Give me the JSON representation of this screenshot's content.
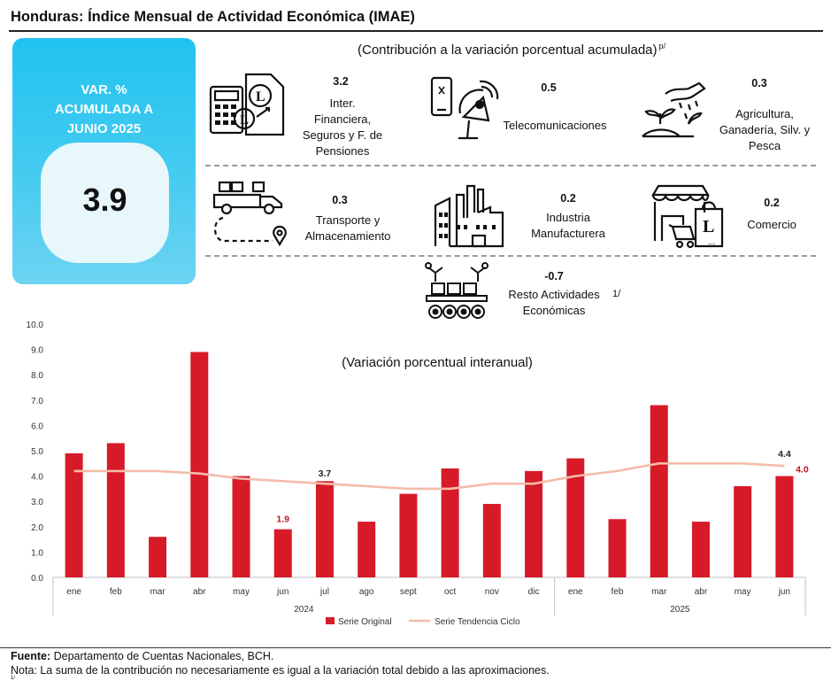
{
  "title": "Honduras: Índice Mensual de Actividad Económica (IMAE)",
  "contrib_subtitle": "(Contribución a la variación porcentual acumulada)",
  "contrib_subtitle_sup": "p/",
  "summary": {
    "label": "VAR. %\nACUMULADA A\nJUNIO 2025",
    "value": "3.9",
    "color": "#29c5ef"
  },
  "sectors": [
    {
      "value": "3.2",
      "name": "Inter.\nFinanciera,\nSeguros y F. de\nPensiones",
      "icon": "finance-icon"
    },
    {
      "value": "0.5",
      "name": "Telecomunicaciones",
      "icon": "telecom-icon"
    },
    {
      "value": "0.3",
      "name": "Agricultura,\nGanadería, Silv. y\nPesca",
      "icon": "agriculture-icon"
    },
    {
      "value": "0.3",
      "name": "Transporte y\nAlmacenamiento",
      "icon": "transport-icon"
    },
    {
      "value": "0.2",
      "name": "Industria\nManufacturera",
      "icon": "factory-icon"
    },
    {
      "value": "0.2",
      "name": "Comercio",
      "icon": "store-icon"
    },
    {
      "value": "-0.7",
      "name": "Resto Actividades\nEconómicas",
      "icon": "robot-conveyor-icon"
    }
  ],
  "resto_sup": "1/",
  "chart_data": {
    "type": "bar",
    "title": "(Variación porcentual interanual)",
    "categories": [
      "ene",
      "feb",
      "mar",
      "abr",
      "may",
      "jun",
      "jul",
      "ago",
      "sept",
      "oct",
      "nov",
      "dic",
      "ene",
      "feb",
      "mar",
      "abr",
      "may",
      "jun"
    ],
    "year_groups": [
      {
        "label": "2024",
        "count": 12
      },
      {
        "label": "2025",
        "count": 6
      }
    ],
    "y_ticks": [
      "0.0",
      "1.0",
      "2.0",
      "3.0",
      "4.0",
      "5.0",
      "6.0",
      "7.0",
      "8.0",
      "9.0",
      "10.0"
    ],
    "ylim": [
      0,
      10
    ],
    "series": [
      {
        "name": "Serie Original",
        "type": "bar",
        "color": "#d71a28",
        "values": [
          4.9,
          5.3,
          1.6,
          8.9,
          4.0,
          1.9,
          3.8,
          2.2,
          3.3,
          4.3,
          2.9,
          4.2,
          4.7,
          2.3,
          6.8,
          2.2,
          3.6,
          4.0
        ]
      },
      {
        "name": "Serie Tendencia Ciclo",
        "type": "line",
        "color": "#f4bba9",
        "values": [
          4.2,
          4.2,
          4.2,
          4.1,
          3.9,
          3.8,
          3.7,
          3.6,
          3.5,
          3.5,
          3.7,
          3.7,
          4.0,
          4.2,
          4.5,
          4.5,
          4.5,
          4.4
        ]
      }
    ],
    "annotations": [
      {
        "index": 5,
        "series": 0,
        "text": "1.9",
        "color": "#c0131f"
      },
      {
        "index": 6,
        "series": 1,
        "text": "3.7",
        "color": "#222222"
      },
      {
        "index": 17,
        "series": 1,
        "text": "4.4",
        "color": "#222222"
      },
      {
        "index": 17,
        "series": 0,
        "text": "4.0",
        "color": "#c0131f"
      }
    ],
    "legend_placement": "bottom-center",
    "grid": false
  },
  "footer": {
    "source_label": "Fuente:",
    "source_text": " Departamento de Cuentas Nacionales, BCH.",
    "note_text": "Nota: La suma de la contribución no necesariamente es igual a la variación total debido a las aproximaciones.",
    "tiny": "1/"
  }
}
